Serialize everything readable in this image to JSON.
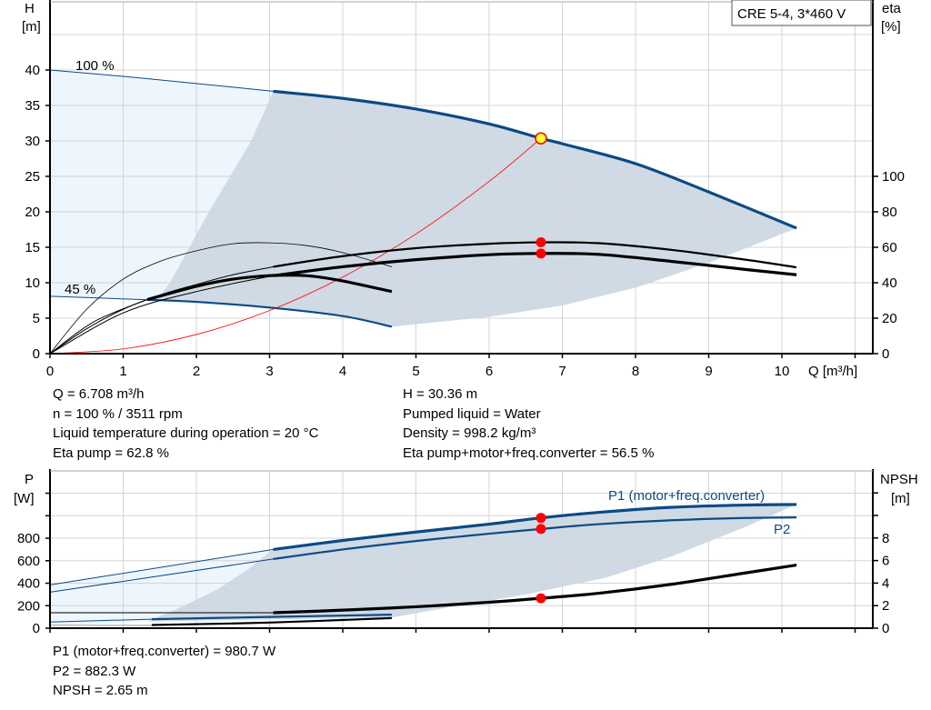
{
  "product_label": "CRE 5-4, 3*460 V",
  "top_info": {
    "left": [
      "Q = 6.708 m³/h",
      "n = 100 % / 3511 rpm",
      "Liquid temperature during operation = 20 °C",
      "Eta pump = 62.8 %"
    ],
    "right": [
      "H = 30.36 m",
      "Pumped liquid = Water",
      "Density = 998.2 kg/m³",
      "Eta pump+motor+freq.converter = 56.5 %"
    ]
  },
  "bottom_info": [
    "P1 (motor+freq.converter) = 980.7 W",
    "P2 = 882.3 W",
    "NPSH = 2.65 m"
  ],
  "colors": {
    "blue": "#0b4a84",
    "black": "#000000",
    "red": "#ff0000",
    "op_point": "#ffff33",
    "range_light": "#edf5fd",
    "range_dark": "#cfdae5",
    "grid": "#d4d4d4"
  },
  "chart_data": [
    {
      "type": "line",
      "xlabel": "Q [m³/h]",
      "ylabel": [
        "H",
        "[m]"
      ],
      "y2label": [
        "eta",
        "[%]"
      ],
      "xlim": [
        0,
        11
      ],
      "ylim": [
        0,
        45
      ],
      "y2lim": [
        0,
        200
      ],
      "xticks": [
        "0",
        "1",
        "2",
        "3",
        "4",
        "5",
        "6",
        "7",
        "8",
        "9",
        "10"
      ],
      "yticks": [
        "0",
        "5",
        "10",
        "15",
        "20",
        "25",
        "30",
        "35",
        "40"
      ],
      "y2ticks": [
        "0",
        "20",
        "40",
        "60",
        "80",
        "100"
      ],
      "grid": true,
      "curve_labels": [
        {
          "text": "100 %"
        },
        {
          "text": "45 %"
        }
      ],
      "regions": [
        {
          "fill": "light",
          "axis": "H",
          "points": [
            [
              0,
              40
            ],
            [
              1,
              39.1
            ],
            [
              2,
              38.1
            ],
            [
              3.05,
              37
            ],
            [
              2.75,
              30
            ],
            [
              2.17,
              20
            ],
            [
              1.64,
              10
            ],
            [
              1.45,
              7.5
            ],
            [
              0,
              8.1
            ]
          ]
        },
        {
          "fill": "dark",
          "axis": "H",
          "points": [
            [
              3.05,
              37
            ],
            [
              4,
              36
            ],
            [
              5,
              34.5
            ],
            [
              6,
              32.4
            ],
            [
              6.708,
              30.36
            ],
            [
              7,
              29.6
            ],
            [
              8,
              26.8
            ],
            [
              9,
              22.8
            ],
            [
              10.2,
              17.7
            ],
            [
              9,
              12.8
            ],
            [
              8,
              9.3
            ],
            [
              7,
              6.8
            ],
            [
              6,
              5.2
            ],
            [
              4.67,
              3.8
            ],
            [
              4,
              5.3
            ],
            [
              3,
              6.5
            ],
            [
              2,
              7.3
            ],
            [
              1.45,
              7.5
            ],
            [
              1.64,
              10
            ],
            [
              2.17,
              20
            ],
            [
              2.75,
              30
            ]
          ]
        }
      ],
      "series": [
        {
          "id": "h-100-thin",
          "axis": "H",
          "color": "blue",
          "weight": "thin",
          "points": [
            [
              0,
              40
            ],
            [
              1,
              39.1
            ],
            [
              2,
              38.1
            ],
            [
              3.05,
              37
            ]
          ]
        },
        {
          "id": "h-100",
          "axis": "H",
          "color": "blue",
          "weight": "thick",
          "points": [
            [
              3.05,
              37
            ],
            [
              4,
              36
            ],
            [
              5,
              34.5
            ],
            [
              6,
              32.4
            ],
            [
              6.708,
              30.36
            ],
            [
              7,
              29.6
            ],
            [
              8,
              26.8
            ],
            [
              9,
              22.8
            ],
            [
              10.2,
              17.7
            ]
          ]
        },
        {
          "id": "h-45-thin",
          "axis": "H",
          "color": "blue",
          "weight": "thin",
          "points": [
            [
              0,
              8.1
            ],
            [
              1.33,
              7.6
            ]
          ]
        },
        {
          "id": "h-45",
          "axis": "H",
          "color": "blue",
          "weight": "medium",
          "points": [
            [
              1.33,
              7.6
            ],
            [
              2,
              7.3
            ],
            [
              3,
              6.5
            ],
            [
              4,
              5.3
            ],
            [
              4.67,
              3.8
            ]
          ]
        },
        {
          "id": "system-curve",
          "axis": "H",
          "color": "red",
          "weight": "hair",
          "points": [
            [
              0,
              0
            ],
            [
              1,
              0.67
            ],
            [
              2,
              2.7
            ],
            [
              3,
              6.07
            ],
            [
              4,
              10.8
            ],
            [
              5,
              16.87
            ],
            [
              6,
              24.29
            ],
            [
              6.708,
              30.36
            ]
          ]
        },
        {
          "id": "eta-pump-100-thin",
          "axis": "eta",
          "color": "black",
          "weight": "thin",
          "points": [
            [
              0,
              0
            ],
            [
              0.5,
              14
            ],
            [
              1,
              25
            ],
            [
              1.5,
              33
            ],
            [
              2,
              39
            ],
            [
              2.5,
              44.5
            ],
            [
              3.05,
              49
            ]
          ]
        },
        {
          "id": "eta-pump-100",
          "axis": "eta",
          "color": "black",
          "weight": "medium",
          "points": [
            [
              3.05,
              49
            ],
            [
              4,
              55
            ],
            [
              5,
              59.5
            ],
            [
              6,
              62
            ],
            [
              6.708,
              62.8
            ],
            [
              7.5,
              62.3
            ],
            [
              8.5,
              58.5
            ],
            [
              9.5,
              53
            ],
            [
              10.2,
              48.7
            ]
          ]
        },
        {
          "id": "eta-total-100-thin",
          "axis": "eta",
          "color": "black",
          "weight": "thin",
          "points": [
            [
              0,
              0
            ],
            [
              1,
              23
            ],
            [
              2,
              35
            ],
            [
              3.05,
              44
            ]
          ]
        },
        {
          "id": "eta-total-100",
          "axis": "eta",
          "color": "black",
          "weight": "thick",
          "points": [
            [
              3.05,
              44
            ],
            [
              4,
              49
            ],
            [
              5,
              53
            ],
            [
              6,
              55.8
            ],
            [
              6.708,
              56.5
            ],
            [
              7.5,
              56
            ],
            [
              8.5,
              52
            ],
            [
              9.5,
              47.5
            ],
            [
              10.2,
              44.5
            ]
          ]
        },
        {
          "id": "eta-pump-45",
          "axis": "eta",
          "color": "black",
          "weight": "hair",
          "points": [
            [
              0,
              0
            ],
            [
              0.5,
              25
            ],
            [
              1,
              42
            ],
            [
              1.5,
              52
            ],
            [
              2,
              58
            ],
            [
              2.5,
              62
            ],
            [
              3,
              62.5
            ],
            [
              3.5,
              61
            ],
            [
              4,
              57
            ],
            [
              4.67,
              49
            ]
          ]
        },
        {
          "id": "eta-total-45-thin",
          "axis": "eta",
          "color": "black",
          "weight": "thin",
          "points": [
            [
              0,
              0
            ],
            [
              0.6,
              18
            ],
            [
              1.33,
              30.5
            ]
          ]
        },
        {
          "id": "eta-total-45",
          "axis": "eta",
          "color": "black",
          "weight": "thick",
          "points": [
            [
              1.33,
              30.5
            ],
            [
              2,
              38
            ],
            [
              2.5,
              42
            ],
            [
              3,
              44
            ],
            [
              3.5,
              44
            ],
            [
              4,
              41
            ],
            [
              4.67,
              35
            ]
          ]
        }
      ],
      "operating_points": [
        {
          "axis": "H",
          "x": 6.708,
          "y": 30.36,
          "style": "duty"
        },
        {
          "axis": "eta",
          "x": 6.708,
          "y": 62.8,
          "style": "red"
        },
        {
          "axis": "eta",
          "x": 6.708,
          "y": 56.5,
          "style": "red"
        }
      ]
    },
    {
      "type": "line",
      "ylabel": [
        "P",
        "[W]"
      ],
      "y2label": [
        "NPSH",
        "[m]"
      ],
      "xlim": [
        0,
        11
      ],
      "ylim": [
        0,
        1400
      ],
      "y2lim": [
        0,
        14
      ],
      "yticks": [
        "0",
        "200",
        "400",
        "600",
        "800"
      ],
      "y2ticks": [
        "0",
        "2",
        "4",
        "6",
        "8"
      ],
      "grid": true,
      "curve_labels": [
        {
          "text": "P1 (motor+freq.converter)"
        },
        {
          "text": "P2"
        }
      ],
      "regions": [
        {
          "fill": "light",
          "axis": "P",
          "points": [
            [
              0,
              385
            ],
            [
              3.05,
              700
            ],
            [
              2.7,
              520
            ],
            [
              2.3,
              350
            ],
            [
              1.8,
              190
            ],
            [
              1.33,
              60
            ],
            [
              0,
              20
            ]
          ]
        },
        {
          "fill": "dark",
          "axis": "P",
          "points": [
            [
              3.05,
              700
            ],
            [
              4,
              780
            ],
            [
              5,
              855
            ],
            [
              6,
              925
            ],
            [
              6.708,
              980.7
            ],
            [
              7.5,
              1030
            ],
            [
              8.5,
              1075
            ],
            [
              9.5,
              1095
            ],
            [
              10.2,
              1100
            ],
            [
              9.5,
              900
            ],
            [
              8.5,
              640
            ],
            [
              7.6,
              450
            ],
            [
              6.5,
              300
            ],
            [
              5.5,
              190
            ],
            [
              4.67,
              95
            ],
            [
              1.33,
              60
            ],
            [
              1.8,
              190
            ],
            [
              2.3,
              350
            ],
            [
              2.7,
              520
            ]
          ]
        }
      ],
      "series": [
        {
          "id": "p1-thin",
          "axis": "P",
          "color": "blue",
          "weight": "thin",
          "points": [
            [
              0,
              385
            ],
            [
              3.05,
              700
            ]
          ]
        },
        {
          "id": "p1",
          "axis": "P",
          "color": "blue",
          "weight": "thick",
          "points": [
            [
              3.05,
              700
            ],
            [
              4,
              780
            ],
            [
              5,
              855
            ],
            [
              6,
              925
            ],
            [
              6.708,
              980.7
            ],
            [
              7.5,
              1030
            ],
            [
              8.5,
              1075
            ],
            [
              9.5,
              1095
            ],
            [
              10.2,
              1100
            ]
          ]
        },
        {
          "id": "p2-thin",
          "axis": "P",
          "color": "blue",
          "weight": "thin",
          "points": [
            [
              0,
              320
            ],
            [
              3.05,
              615
            ]
          ]
        },
        {
          "id": "p2",
          "axis": "P",
          "color": "blue",
          "weight": "medium",
          "points": [
            [
              3.05,
              615
            ],
            [
              4,
              700
            ],
            [
              5,
              775
            ],
            [
              6,
              840
            ],
            [
              6.708,
              882.3
            ],
            [
              7.5,
              925
            ],
            [
              8.5,
              960
            ],
            [
              9.5,
              980
            ],
            [
              10.2,
              985
            ]
          ]
        },
        {
          "id": "npsh-thin",
          "axis": "NPSH",
          "color": "black",
          "weight": "thin",
          "points": [
            [
              0,
              1.37
            ],
            [
              3.05,
              1.37
            ]
          ]
        },
        {
          "id": "npsh",
          "axis": "NPSH",
          "color": "black",
          "weight": "thick",
          "points": [
            [
              3.05,
              1.37
            ],
            [
              4,
              1.6
            ],
            [
              5,
              1.9
            ],
            [
              6,
              2.3
            ],
            [
              6.708,
              2.65
            ],
            [
              7.5,
              3.1
            ],
            [
              8.5,
              3.9
            ],
            [
              9.5,
              4.9
            ],
            [
              10.2,
              5.6
            ]
          ]
        },
        {
          "id": "p1-45-thin",
          "axis": "P",
          "color": "blue",
          "weight": "thin",
          "points": [
            [
              0,
              55
            ],
            [
              1.39,
              80
            ]
          ]
        },
        {
          "id": "p1-45",
          "axis": "P",
          "color": "blue",
          "weight": "medium",
          "points": [
            [
              1.39,
              80
            ],
            [
              3,
              100
            ],
            [
              4.67,
              120
            ]
          ]
        },
        {
          "id": "npsh-45-thin",
          "axis": "P",
          "color": "gray",
          "weight": "thin",
          "points": [
            [
              0,
              25
            ],
            [
              1.39,
              25
            ]
          ]
        },
        {
          "id": "p2-45",
          "axis": "P",
          "color": "black",
          "weight": "medium",
          "points": [
            [
              1.39,
              28
            ],
            [
              3,
              50
            ],
            [
              4.67,
              90
            ]
          ]
        }
      ],
      "operating_points": [
        {
          "axis": "P",
          "x": 6.708,
          "y": 980.7,
          "style": "red"
        },
        {
          "axis": "P",
          "x": 6.708,
          "y": 882.3,
          "style": "red"
        },
        {
          "axis": "NPSH",
          "x": 6.708,
          "y": 2.65,
          "style": "red"
        }
      ]
    }
  ]
}
